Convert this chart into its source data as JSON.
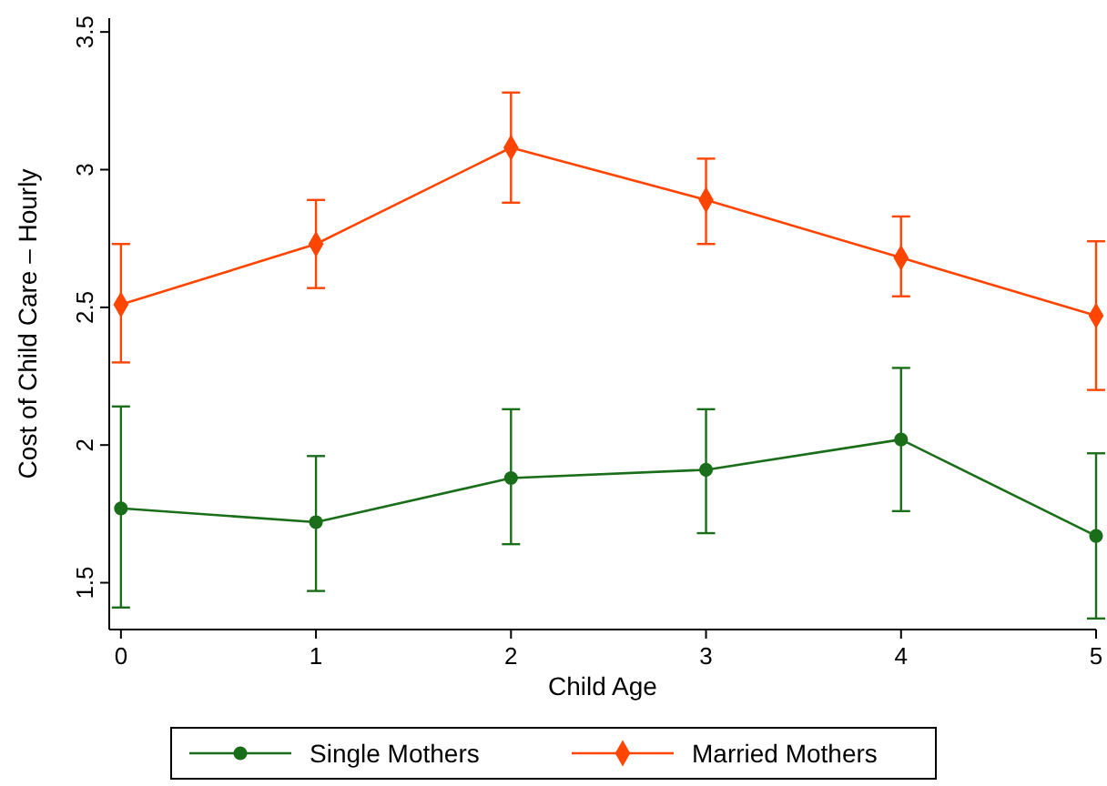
{
  "chart_data": {
    "type": "line",
    "xlabel": "Child Age",
    "ylabel": "Cost of Child Care – Hourly",
    "x": [
      0,
      1,
      2,
      3,
      4,
      5
    ],
    "xlim": [
      -0.06,
      5
    ],
    "xticks": [
      0,
      1,
      2,
      3,
      4,
      5
    ],
    "ylim": [
      1.33,
      3.55
    ],
    "yticks": [
      1.5,
      2,
      2.5,
      3,
      3.5
    ],
    "grid": false,
    "legend": "bottom",
    "series": [
      {
        "name": "Single Mothers",
        "color": "#1a6e1a",
        "marker": "circle",
        "values": [
          1.77,
          1.72,
          1.88,
          1.91,
          2.02,
          1.67
        ],
        "errors": [
          [
            1.41,
            2.14
          ],
          [
            1.47,
            1.96
          ],
          [
            1.64,
            2.13
          ],
          [
            1.68,
            2.13
          ],
          [
            1.76,
            2.28
          ],
          [
            1.37,
            1.97
          ]
        ]
      },
      {
        "name": "Married Mothers",
        "color": "#ff4500",
        "marker": "diamond",
        "values": [
          2.51,
          2.73,
          3.08,
          2.89,
          2.68,
          2.47
        ],
        "errors": [
          [
            2.3,
            2.73
          ],
          [
            2.57,
            2.89
          ],
          [
            2.88,
            3.28
          ],
          [
            2.73,
            3.04
          ],
          [
            2.54,
            2.83
          ],
          [
            2.2,
            2.74
          ]
        ]
      }
    ]
  }
}
